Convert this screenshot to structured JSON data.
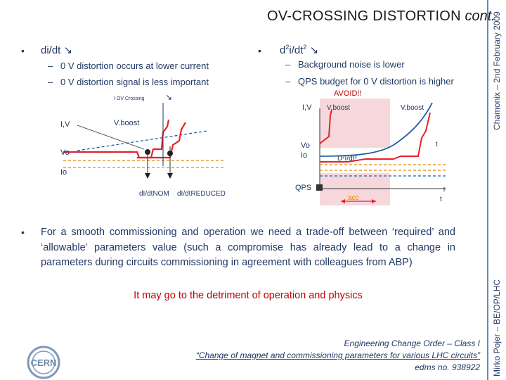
{
  "title": {
    "main": "OV-CROSSING DISTORTION",
    "suffix": "cont."
  },
  "sidebar": {
    "top_text": "Chamonix – 2nd February 2009",
    "bottom_text": "Mirko Pojer – BE/OP/LHC"
  },
  "left": {
    "heading": "di/dt",
    "items": [
      "0 V distortion occurs at lower current",
      "0 V distortion signal is less important"
    ]
  },
  "right": {
    "heading": "d2i/dt2",
    "items": [
      "Background noise is lower",
      "QPS budget for 0 V distortion is higher"
    ]
  },
  "diagram_left": {
    "label_ov": "I OV Crossing",
    "label_iv": "I,V",
    "label_vboost": "V.boost",
    "label_vo": "Vo",
    "label_io": "Io",
    "label_nom": "dI/dtNOM",
    "label_reduced": "dI/dtREDUCED"
  },
  "diagram_right": {
    "label_avoid": "AVOID!!",
    "label_iv": "I,V",
    "label_vboost1": "V.boost",
    "label_vboost2": "V.boost",
    "label_vo": "Vo",
    "label_io": "Io",
    "label_d2": "D²I/dt²",
    "label_t1": "t",
    "label_qps": "QPS",
    "label_acc": "acc",
    "label_t2": "t"
  },
  "paragraph": "For a smooth commissioning and operation we need a trade-off between ‘required’ and ‘allowable’ parameters value (such a compromise has already lead to a change in parameters during circuits commissioning in agreement with colleagues from ABP)",
  "highlight": "It may go to the detriment of operation and physics",
  "footer": {
    "line1": "Engineering Change Order – Class I",
    "line2": "“Change of magnet and commissioning parameters for various LHC circuits”",
    "line3": "edms no. 938922"
  },
  "logo_text": "CERN",
  "colors": {
    "accent_blue": "#1f3864",
    "red": "#c00000",
    "line_red": "#e8202a",
    "dashed_blue": "#1f5fa8",
    "dashed_orange": "#e08a00",
    "pink_zone": "#f6d7dc"
  }
}
